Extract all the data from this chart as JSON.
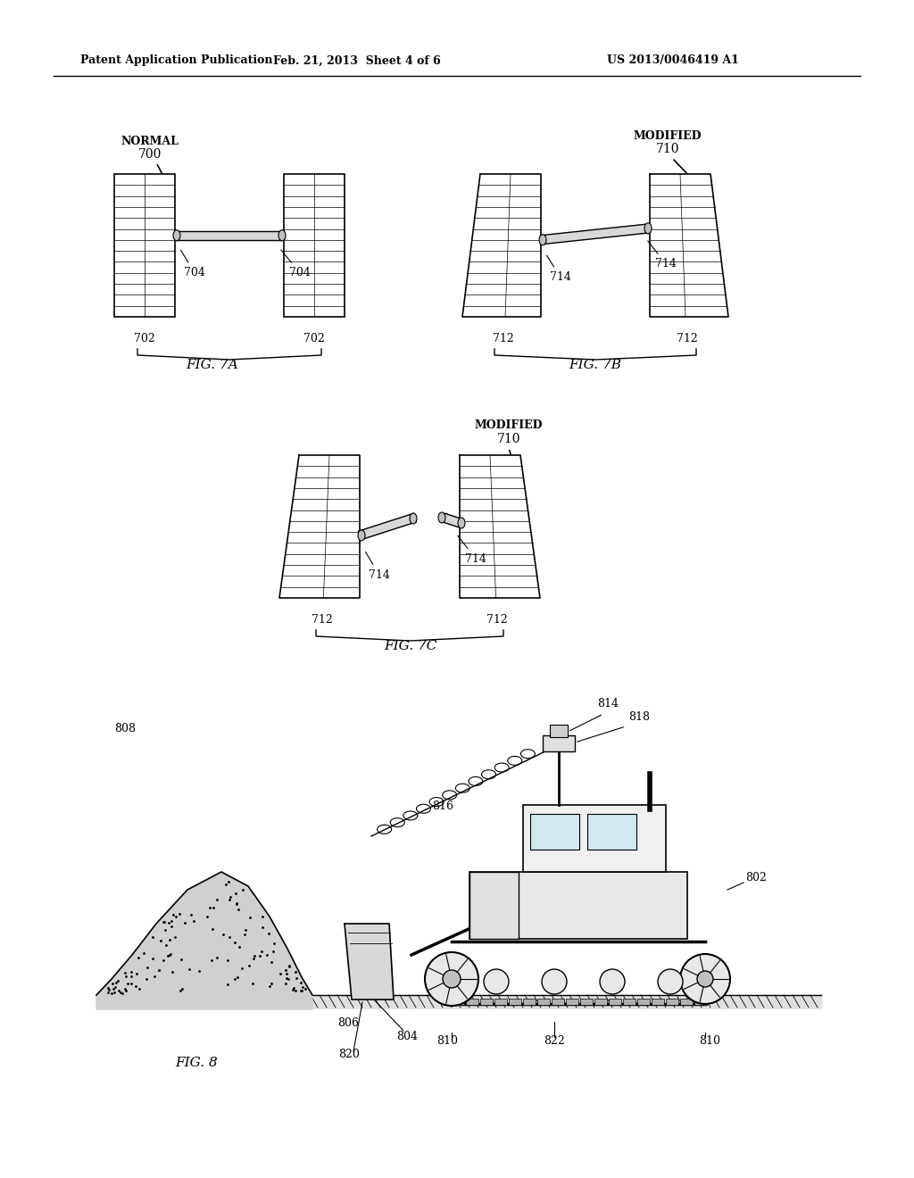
{
  "header_left": "Patent Application Publication",
  "header_mid": "Feb. 21, 2013  Sheet 4 of 6",
  "header_right": "US 2013/0046419 A1",
  "bg_color": "#ffffff",
  "line_color": "#000000",
  "fig7a_label": "FIG. 7A",
  "fig7b_label": "FIG. 7B",
  "fig7c_label": "FIG. 7C",
  "fig8_label": "FIG. 8",
  "normal_label": "NORMAL",
  "modified_label": "MODIFIED",
  "ref_700": "700",
  "ref_702": "702",
  "ref_704": "704",
  "ref_710": "710",
  "ref_712": "712",
  "ref_714": "714",
  "ref_802": "802",
  "ref_804": "804",
  "ref_806": "806",
  "ref_808": "808",
  "ref_810": "810",
  "ref_814": "814",
  "ref_816": "816",
  "ref_818": "818",
  "ref_820": "820",
  "ref_822": "822"
}
